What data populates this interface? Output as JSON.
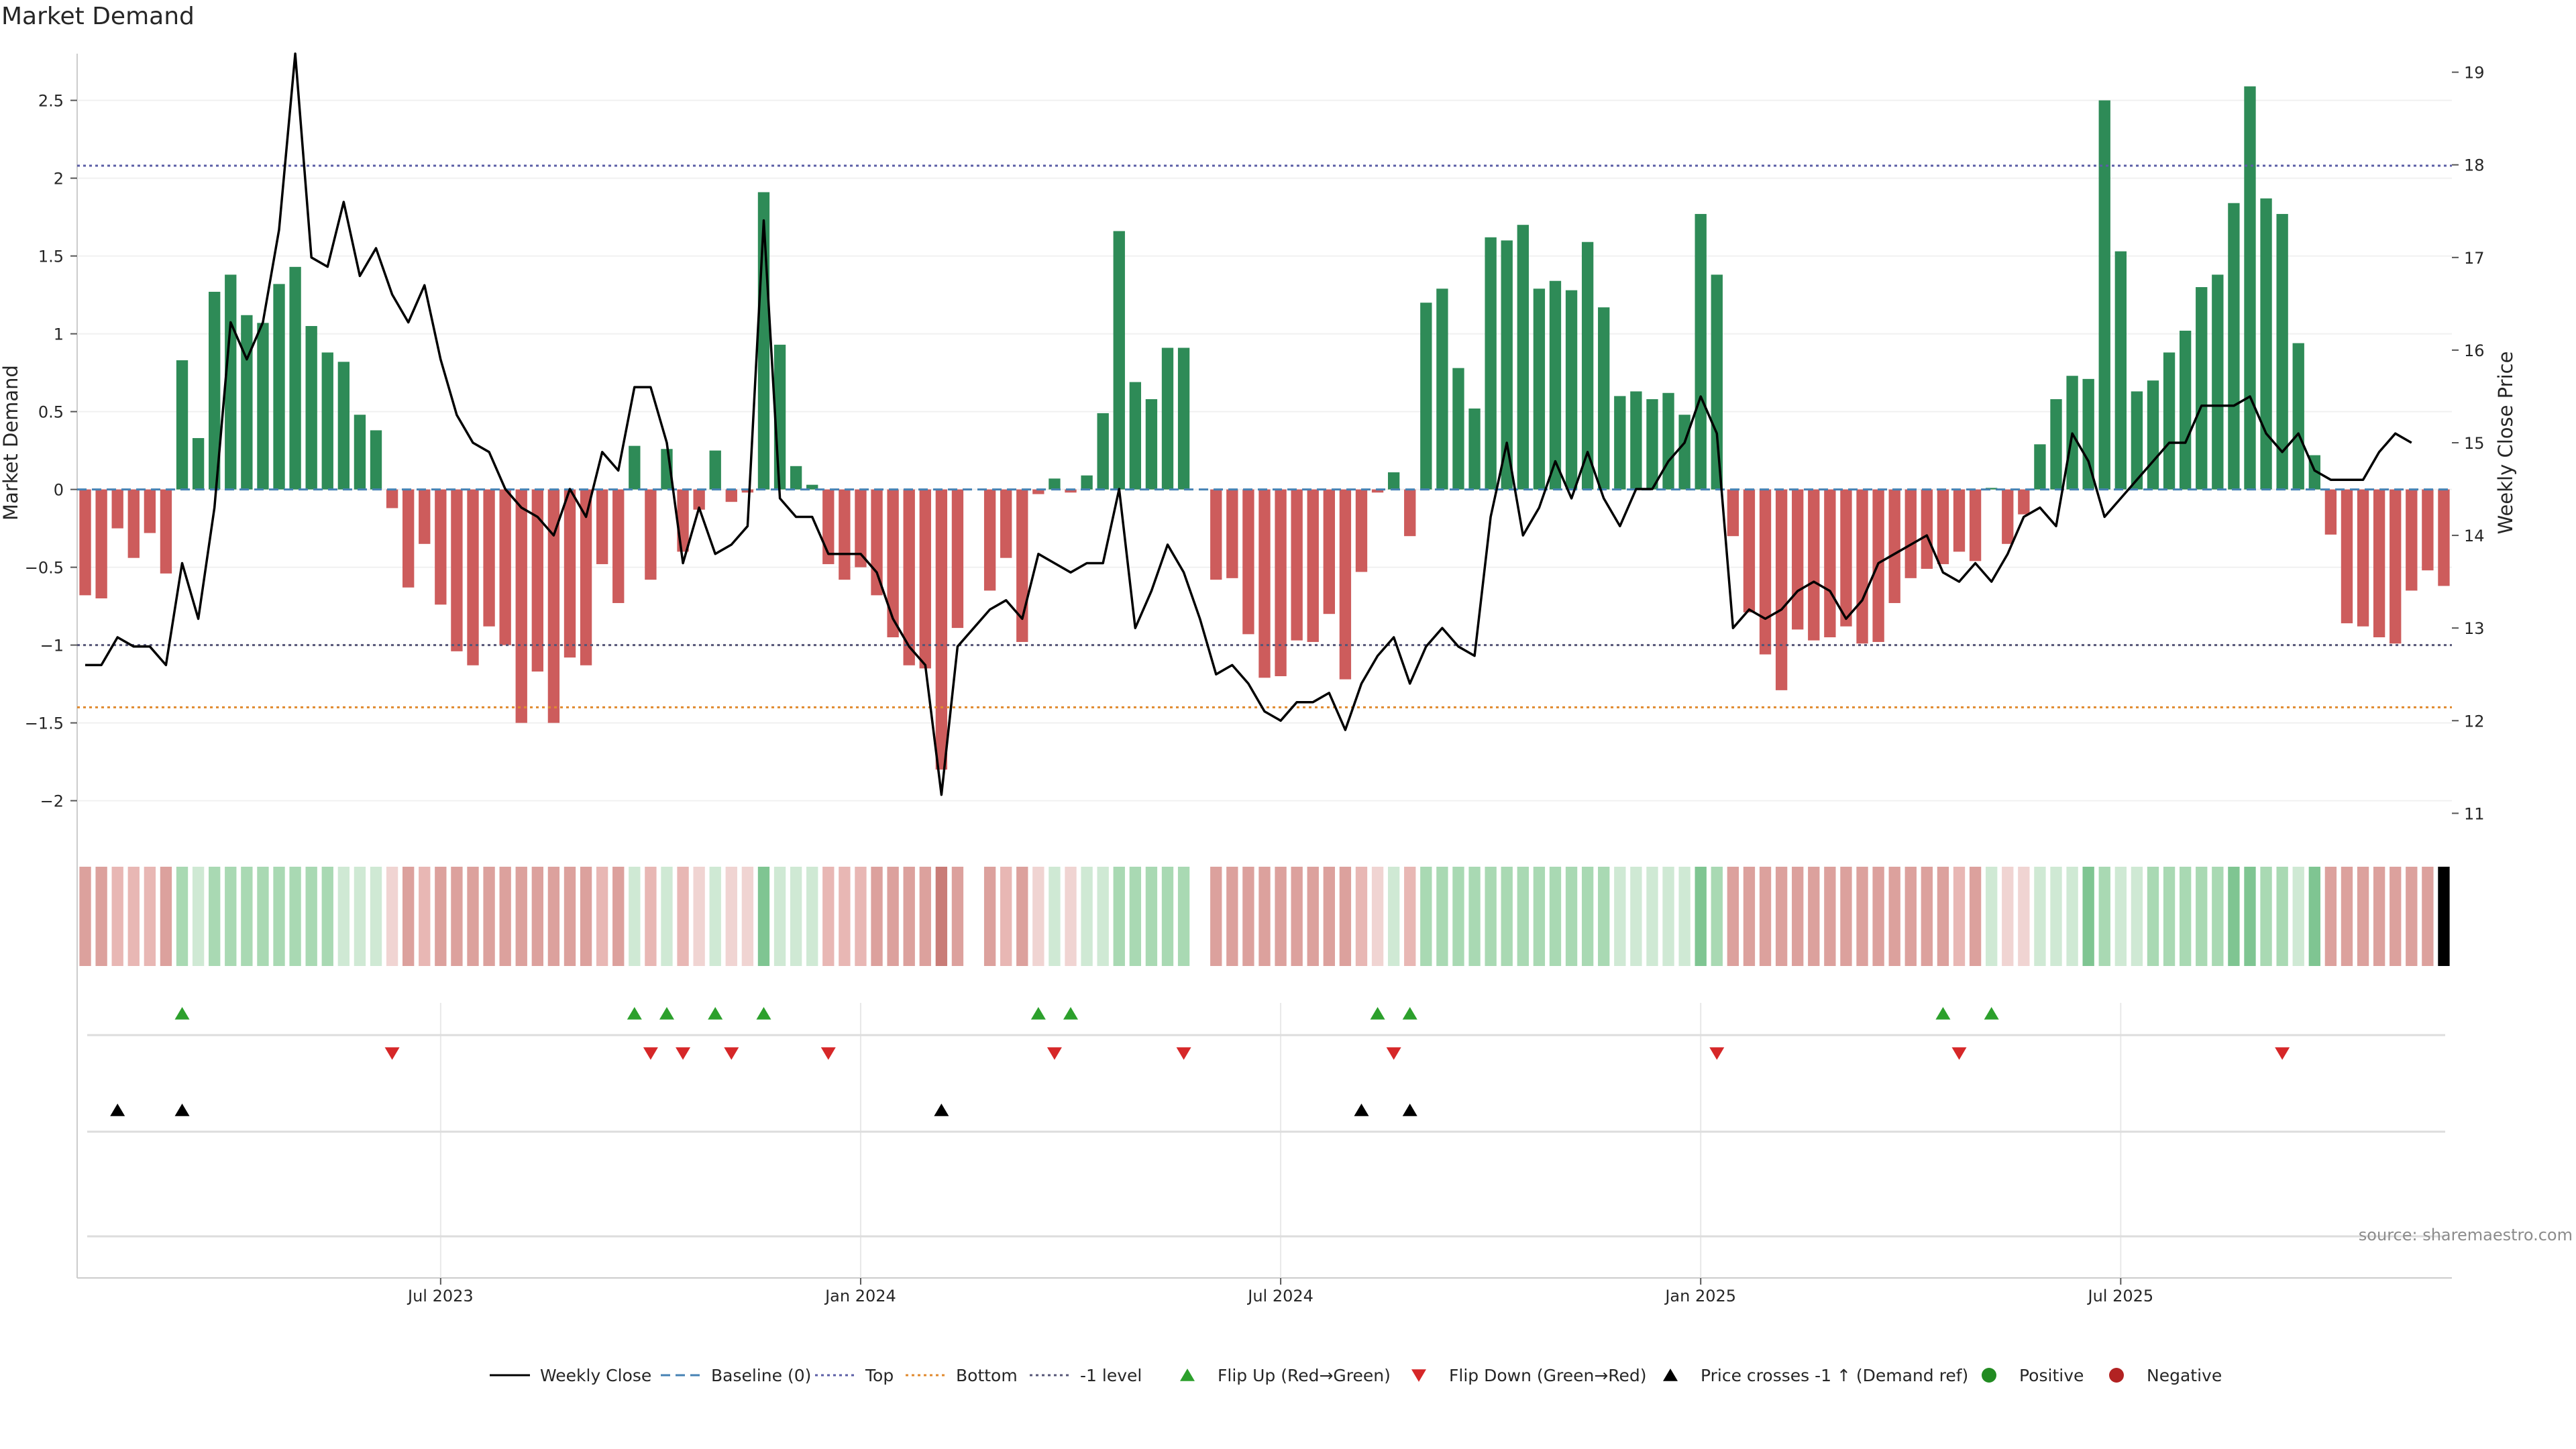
{
  "chart_data": {
    "type": "bar",
    "title": "Market Demand",
    "ylabel": "Market Demand",
    "y2label": "Weekly Close Price",
    "ylim": [
      -2.2,
      2.8
    ],
    "y2lim": [
      10.8,
      19.2
    ],
    "y_ticks": [
      -2,
      -1.5,
      -1,
      -0.5,
      0,
      0.5,
      1,
      1.5,
      2,
      2.5
    ],
    "y_tick_labels": [
      "−2",
      "−1.5",
      "−1",
      "−0.5",
      "0",
      "0.5",
      "1",
      "1.5",
      "2",
      "2.5"
    ],
    "y2_ticks": [
      11,
      12,
      13,
      14,
      15,
      16,
      17,
      18,
      19
    ],
    "y2_tick_labels": [
      "11",
      "12",
      "13",
      "14",
      "15",
      "16",
      "17",
      "18",
      "19"
    ],
    "x_ticks": [
      {
        "index": 22,
        "label": "Jul 2023"
      },
      {
        "index": 48,
        "label": "Jan 2024"
      },
      {
        "index": 74,
        "label": "Jul 2024"
      },
      {
        "index": 100,
        "label": "Jan 2025"
      },
      {
        "index": 126,
        "label": "Jul 2025"
      }
    ],
    "levels": {
      "top": 2.08,
      "bottom": -1.4,
      "minus_one": -1.0,
      "baseline": 0
    },
    "demand": [
      -0.68,
      -0.7,
      -0.25,
      -0.44,
      -0.28,
      -0.54,
      0.83,
      0.33,
      1.27,
      1.38,
      1.12,
      1.07,
      1.32,
      1.43,
      1.05,
      0.88,
      0.82,
      0.48,
      0.38,
      -0.12,
      -0.63,
      -0.35,
      -0.74,
      -1.04,
      -1.13,
      -0.88,
      -1.0,
      -1.5,
      -1.17,
      -1.5,
      -1.08,
      -1.13,
      -0.48,
      -0.73,
      0.28,
      -0.58,
      0.26,
      -0.4,
      -0.13,
      0.25,
      -0.08,
      -0.02,
      1.91,
      0.93,
      0.15,
      0.03,
      -0.48,
      -0.58,
      -0.5,
      -0.68,
      -0.95,
      -1.13,
      -1.15,
      -1.8,
      -0.89,
      0.0,
      -0.65,
      -0.44,
      -0.98,
      -0.03,
      0.07,
      -0.02,
      0.09,
      0.49,
      1.66,
      0.69,
      0.58,
      0.91,
      0.91,
      0.0,
      -0.58,
      -0.57,
      -0.93,
      -1.21,
      -1.2,
      -0.97,
      -0.98,
      -0.8,
      -1.22,
      -0.53,
      -0.02,
      0.11,
      -0.3,
      1.2,
      1.29,
      0.78,
      0.52,
      1.62,
      1.6,
      1.7,
      1.29,
      1.34,
      1.28,
      1.59,
      1.17,
      0.6,
      0.63,
      0.58,
      0.62,
      0.48,
      1.77,
      1.38,
      -0.3,
      -0.79,
      -1.06,
      -1.29,
      -0.9,
      -0.97,
      -0.95,
      -0.88,
      -0.99,
      -0.98,
      -0.73,
      -0.57,
      -0.51,
      -0.48,
      -0.4,
      -0.46,
      0.01,
      -0.35,
      -0.16,
      0.29,
      0.58,
      0.73,
      0.71,
      2.5,
      1.53,
      0.63,
      0.7,
      0.88,
      1.02,
      1.3,
      1.38,
      1.84,
      2.59,
      1.87,
      1.77,
      0.94,
      0.22,
      -0.29,
      -0.86,
      -0.88,
      -0.95,
      -0.99,
      -0.65,
      -0.52,
      -0.62
    ],
    "weekly_close": [
      12.6,
      12.6,
      12.9,
      12.8,
      12.8,
      12.6,
      13.7,
      13.1,
      14.3,
      16.3,
      15.9,
      16.3,
      17.3,
      19.2,
      17.0,
      16.9,
      17.6,
      16.8,
      17.1,
      16.6,
      16.3,
      16.7,
      15.9,
      15.3,
      15.0,
      14.9,
      14.5,
      14.3,
      14.2,
      14.0,
      14.5,
      14.2,
      14.9,
      14.7,
      15.6,
      15.6,
      15.0,
      13.7,
      14.3,
      13.8,
      13.9,
      14.1,
      17.4,
      14.4,
      14.2,
      14.2,
      13.8,
      13.8,
      13.8,
      13.6,
      13.1,
      12.8,
      12.6,
      11.2,
      12.8,
      13.0,
      13.2,
      13.3,
      13.1,
      13.8,
      13.7,
      13.6,
      13.7,
      13.7,
      14.5,
      13.0,
      13.4,
      13.9,
      13.6,
      13.1,
      12.5,
      12.6,
      12.4,
      12.1,
      12.0,
      12.2,
      12.2,
      12.3,
      11.9,
      12.4,
      12.7,
      12.9,
      12.4,
      12.8,
      13.0,
      12.8,
      12.7,
      14.2,
      15.0,
      14.0,
      14.3,
      14.8,
      14.4,
      14.9,
      14.4,
      14.1,
      14.5,
      14.5,
      14.8,
      15.0,
      15.5,
      15.1,
      13.0,
      13.2,
      13.1,
      13.2,
      13.4,
      13.5,
      13.4,
      13.1,
      13.3,
      13.7,
      13.8,
      13.9,
      14.0,
      13.6,
      13.5,
      13.7,
      13.5,
      13.8,
      14.2,
      14.3,
      14.1,
      15.1,
      14.8,
      14.2,
      14.4,
      14.6,
      14.8,
      15.0,
      15.0,
      15.4,
      15.4,
      15.4,
      15.5,
      15.1,
      14.9,
      15.1,
      14.7,
      14.6,
      14.6,
      14.6,
      14.9,
      15.1,
      15.0
    ],
    "heat_intensity": [
      3,
      3,
      2,
      2,
      2,
      3,
      2,
      1,
      2,
      2,
      2,
      2,
      2,
      2,
      2,
      2,
      1,
      1,
      1,
      1,
      3,
      2,
      3,
      3,
      3,
      3,
      3,
      3,
      3,
      3,
      3,
      3,
      2,
      3,
      1,
      2,
      1,
      2,
      1,
      1,
      1,
      1,
      3,
      1,
      1,
      1,
      2,
      2,
      2,
      3,
      3,
      3,
      3,
      4,
      3,
      0,
      3,
      2,
      3,
      1,
      1,
      1,
      1,
      1,
      2,
      2,
      2,
      2,
      2,
      1,
      3,
      3,
      3,
      3,
      3,
      3,
      3,
      3,
      3,
      2,
      1,
      1,
      2,
      2,
      2,
      2,
      2,
      2,
      2,
      2,
      2,
      2,
      2,
      2,
      2,
      1,
      1,
      1,
      1,
      1,
      3,
      2,
      3,
      3,
      3,
      3,
      3,
      3,
      3,
      3,
      3,
      3,
      3,
      3,
      3,
      3,
      2,
      3,
      1,
      1,
      1,
      1,
      1,
      1,
      3,
      2,
      1,
      1,
      2,
      2,
      2,
      2,
      2,
      3,
      3,
      2,
      2,
      1,
      3,
      3,
      3,
      3,
      3,
      3,
      3,
      3
    ],
    "flip_up": [
      6,
      34,
      36,
      39,
      42,
      59,
      61,
      80,
      82,
      115,
      118
    ],
    "flip_down": [
      19,
      35,
      37,
      40,
      46,
      60,
      68,
      81,
      101,
      116,
      136
    ],
    "price_cross": [
      2,
      6,
      53,
      79,
      82
    ],
    "legend": [
      "Weekly Close",
      "Baseline (0)",
      "Top",
      "Bottom",
      "-1 level",
      "Flip Up (Red→Green)",
      "Flip Down (Green→Red)",
      "Price crosses -1 ↑ (Demand ref)",
      "Positive",
      "Negative"
    ],
    "source": "source: sharemaestro.com",
    "colors": {
      "positive": "#2e8b57",
      "negative": "#cd5c5c",
      "line": "#000000",
      "top": "#5b5ea6",
      "bottom": "#e08a2e",
      "minus_one": "#555577",
      "baseline": "#4682b4",
      "flip_up": "#2ca02c",
      "flip_down": "#d62728",
      "cross": "#000000",
      "pos_dot": "#228b22",
      "neg_dot": "#b22222"
    }
  }
}
